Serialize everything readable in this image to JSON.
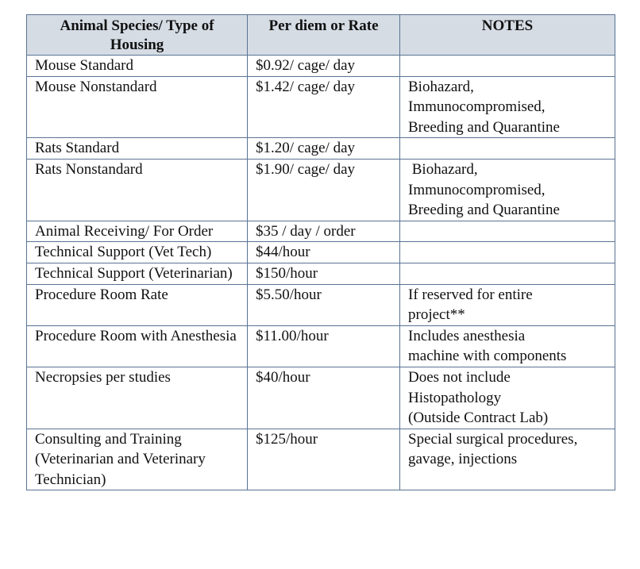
{
  "table": {
    "header": [
      "Animal Species/ Type of Housing",
      "Per diem or Rate",
      "NOTES"
    ],
    "rows": [
      [
        "Mouse Standard",
        "$0.92/ cage/ day",
        []
      ],
      [
        "Mouse Nonstandard",
        "$1.42/ cage/ day",
        [
          "Biohazard,",
          "Immunocompromised,",
          "Breeding and Quarantine"
        ]
      ],
      [
        "Rats Standard",
        "$1.20/ cage/ day",
        []
      ],
      [
        "Rats Nonstandard",
        "$1.90/ cage/ day",
        [
          " Biohazard,",
          "Immunocompromised,",
          "Breeding and Quarantine"
        ]
      ],
      [
        "Animal Receiving/ For Order",
        "$35 / day / order",
        []
      ],
      [
        "Technical Support (Vet Tech)",
        "$44/hour",
        []
      ],
      [
        "Technical Support (Veterinarian)",
        "$150/hour",
        []
      ],
      [
        "Procedure Room Rate",
        "$5.50/hour",
        [
          "If reserved for entire",
          "project**"
        ]
      ],
      [
        "Procedure Room with Anesthesia",
        "$11.00/hour",
        [
          "Includes anesthesia",
          "machine with components"
        ]
      ],
      [
        "Necropsies per studies",
        "$40/hour",
        [
          "Does not include",
          "Histopathology",
          "(Outside Contract Lab)"
        ]
      ],
      [
        "Consulting and Training (Veterinarian and Veterinary Technician)",
        "$125/hour",
        [
          "Special surgical procedures,",
          "gavage, injections"
        ]
      ]
    ]
  }
}
